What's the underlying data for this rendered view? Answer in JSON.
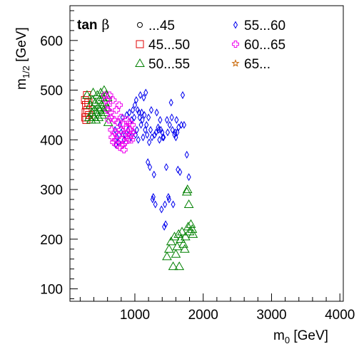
{
  "chart_data": {
    "type": "scatter",
    "xlabel": "m",
    "xlabel_sub": "0",
    "xlabel_unit": " [GeV]",
    "ylabel": "m",
    "ylabel_sub": "1/2",
    "ylabel_unit": " [GeV]",
    "xlim": [
      50,
      4050
    ],
    "ylim": [
      75,
      670
    ],
    "x_ticks": [
      1000,
      2000,
      3000,
      4000
    ],
    "y_ticks": [
      100,
      200,
      300,
      400,
      500,
      600
    ],
    "legend": {
      "title": "tan",
      "title_symbol": "β",
      "placement": "top-left"
    },
    "series": [
      {
        "name": "...45",
        "marker": "circle",
        "color": "#000000",
        "points": []
      },
      {
        "name": "45...50",
        "marker": "square",
        "color": "#e00000",
        "points": [
          [
            270,
            480
          ],
          [
            275,
            445
          ],
          [
            280,
            455
          ],
          [
            285,
            470
          ],
          [
            290,
            440
          ],
          [
            300,
            490
          ],
          [
            305,
            460
          ],
          [
            320,
            475
          ],
          [
            330,
            450
          ]
        ]
      },
      {
        "name": "50...55",
        "marker": "triangle",
        "color": "#008000",
        "points": [
          [
            300,
            490
          ],
          [
            330,
            445
          ],
          [
            350,
            470
          ],
          [
            360,
            440
          ],
          [
            370,
            455
          ],
          [
            380,
            480
          ],
          [
            390,
            495
          ],
          [
            400,
            445
          ],
          [
            410,
            460
          ],
          [
            420,
            475
          ],
          [
            430,
            440
          ],
          [
            440,
            455
          ],
          [
            450,
            490
          ],
          [
            460,
            465
          ],
          [
            470,
            445
          ],
          [
            480,
            480
          ],
          [
            490,
            460
          ],
          [
            500,
            495
          ],
          [
            510,
            470
          ],
          [
            520,
            450
          ],
          [
            530,
            485
          ],
          [
            540,
            460
          ],
          [
            550,
            500
          ],
          [
            560,
            475
          ],
          [
            570,
            455
          ],
          [
            580,
            490
          ],
          [
            590,
            465
          ],
          [
            600,
            485
          ],
          [
            610,
            435
          ],
          [
            1470,
            165
          ],
          [
            1500,
            180
          ],
          [
            1530,
            195
          ],
          [
            1560,
            145
          ],
          [
            1580,
            205
          ],
          [
            1600,
            170
          ],
          [
            1620,
            185
          ],
          [
            1640,
            210
          ],
          [
            1650,
            145
          ],
          [
            1670,
            200
          ],
          [
            1690,
            215
          ],
          [
            1710,
            190
          ],
          [
            1730,
            180
          ],
          [
            1740,
            205
          ],
          [
            1760,
            295
          ],
          [
            1770,
            300
          ],
          [
            1780,
            225
          ],
          [
            1790,
            270
          ],
          [
            1800,
            215
          ],
          [
            1820,
            230
          ],
          [
            1840,
            220
          ],
          [
            1850,
            210
          ]
        ]
      },
      {
        "name": "55...60",
        "marker": "diamond",
        "color": "#0000ee",
        "points": [
          [
            710,
            420
          ],
          [
            720,
            390
          ],
          [
            740,
            405
          ],
          [
            760,
            395
          ],
          [
            780,
            430
          ],
          [
            800,
            415
          ],
          [
            820,
            445
          ],
          [
            840,
            400
          ],
          [
            860,
            410
          ],
          [
            880,
            450
          ],
          [
            900,
            420
          ],
          [
            920,
            455
          ],
          [
            940,
            405
          ],
          [
            950,
            440
          ],
          [
            970,
            460
          ],
          [
            980,
            415
          ],
          [
            990,
            445
          ],
          [
            1000,
            470
          ],
          [
            1010,
            410
          ],
          [
            1020,
            480
          ],
          [
            1030,
            420
          ],
          [
            1040,
            460
          ],
          [
            1050,
            400
          ],
          [
            1060,
            455
          ],
          [
            1070,
            445
          ],
          [
            1080,
            490
          ],
          [
            1090,
            430
          ],
          [
            1100,
            455
          ],
          [
            1110,
            440
          ],
          [
            1120,
            405
          ],
          [
            1130,
            485
          ],
          [
            1140,
            450
          ],
          [
            1150,
            420
          ],
          [
            1160,
            495
          ],
          [
            1170,
            430
          ],
          [
            1180,
            410
          ],
          [
            1190,
            355
          ],
          [
            1200,
            445
          ],
          [
            1210,
            395
          ],
          [
            1220,
            345
          ],
          [
            1230,
            420
          ],
          [
            1240,
            460
          ],
          [
            1250,
            405
          ],
          [
            1260,
            280
          ],
          [
            1270,
            285
          ],
          [
            1280,
            330
          ],
          [
            1290,
            410
          ],
          [
            1300,
            270
          ],
          [
            1310,
            415
          ],
          [
            1320,
            455
          ],
          [
            1340,
            425
          ],
          [
            1350,
            420
          ],
          [
            1360,
            400
          ],
          [
            1370,
            440
          ],
          [
            1380,
            420
          ],
          [
            1390,
            260
          ],
          [
            1400,
            415
          ],
          [
            1410,
            405
          ],
          [
            1420,
            405
          ],
          [
            1430,
            225
          ],
          [
            1440,
            270
          ],
          [
            1450,
            230
          ],
          [
            1460,
            345
          ],
          [
            1470,
            440
          ],
          [
            1480,
            415
          ],
          [
            1490,
            285
          ],
          [
            1500,
            280
          ],
          [
            1510,
            430
          ],
          [
            1530,
            475
          ],
          [
            1540,
            445
          ],
          [
            1550,
            420
          ],
          [
            1560,
            270
          ],
          [
            1580,
            410
          ],
          [
            1590,
            415
          ],
          [
            1600,
            405
          ],
          [
            1610,
            440
          ],
          [
            1620,
            415
          ],
          [
            1630,
            340
          ],
          [
            1640,
            425
          ],
          [
            1660,
            335
          ],
          [
            1680,
            430
          ],
          [
            1700,
            490
          ],
          [
            1720,
            430
          ],
          [
            1760,
            370
          ],
          [
            1790,
            325
          ]
        ]
      },
      {
        "name": "60...65",
        "marker": "cross",
        "color": "#ee00ee",
        "points": [
          [
            560,
            490
          ],
          [
            580,
            480
          ],
          [
            600,
            460
          ],
          [
            610,
            470
          ],
          [
            620,
            440
          ],
          [
            630,
            490
          ],
          [
            640,
            455
          ],
          [
            650,
            445
          ],
          [
            660,
            420
          ],
          [
            670,
            405
          ],
          [
            680,
            480
          ],
          [
            690,
            395
          ],
          [
            700,
            440
          ],
          [
            710,
            415
          ],
          [
            720,
            400
          ],
          [
            730,
            460
          ],
          [
            740,
            390
          ],
          [
            750,
            435
          ],
          [
            760,
            410
          ],
          [
            770,
            470
          ],
          [
            780,
            385
          ],
          [
            790,
            420
          ],
          [
            800,
            445
          ],
          [
            810,
            400
          ],
          [
            820,
            390
          ],
          [
            830,
            430
          ],
          [
            840,
            380
          ],
          [
            850,
            410
          ],
          [
            860,
            395
          ],
          [
            870,
            425
          ],
          [
            880,
            405
          ],
          [
            890,
            440
          ],
          [
            900,
            415
          ],
          [
            910,
            400
          ],
          [
            920,
            435
          ],
          [
            930,
            420
          ],
          [
            940,
            410
          ],
          [
            950,
            400
          ],
          [
            960,
            430
          ],
          [
            970,
            415
          ]
        ]
      },
      {
        "name": "65...",
        "marker": "star",
        "color": "#c86400",
        "points": []
      }
    ]
  }
}
